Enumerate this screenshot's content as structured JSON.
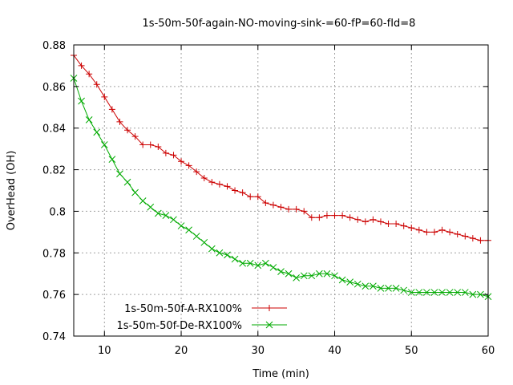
{
  "chart_data": {
    "type": "line",
    "title": "1s-50m-50f-again-NO-moving-sink-=60-fP=60-fId=8",
    "xlabel": "Time (min)",
    "ylabel": "OverHead (OH)",
    "xlim": [
      6,
      60
    ],
    "ylim": [
      0.74,
      0.88
    ],
    "xticks": [
      10,
      20,
      30,
      40,
      50,
      60
    ],
    "yticks": [
      0.74,
      0.76,
      0.78,
      0.8,
      0.82,
      0.84,
      0.86,
      0.88
    ],
    "ytick_labels": [
      "0.74",
      "0.76",
      "0.78",
      "0.8",
      "0.82",
      "0.84",
      "0.86",
      "0.88"
    ],
    "grid": true,
    "legend_position": "bottom-left",
    "series": [
      {
        "name": "1s-50m-50f-A-RX100%",
        "color": "#cc0000",
        "marker": "plus",
        "x": [
          6,
          7,
          8,
          9,
          10,
          11,
          12,
          13,
          14,
          15,
          16,
          17,
          18,
          19,
          20,
          21,
          22,
          23,
          24,
          25,
          26,
          27,
          28,
          29,
          30,
          31,
          32,
          33,
          34,
          35,
          36,
          37,
          38,
          39,
          40,
          41,
          42,
          43,
          44,
          45,
          46,
          47,
          48,
          49,
          50,
          51,
          52,
          53,
          54,
          55,
          56,
          57,
          58,
          59,
          60
        ],
        "y": [
          0.875,
          0.87,
          0.866,
          0.861,
          0.855,
          0.849,
          0.843,
          0.839,
          0.836,
          0.832,
          0.832,
          0.831,
          0.828,
          0.827,
          0.824,
          0.822,
          0.819,
          0.816,
          0.814,
          0.813,
          0.812,
          0.81,
          0.809,
          0.807,
          0.807,
          0.804,
          0.803,
          0.802,
          0.801,
          0.801,
          0.8,
          0.797,
          0.797,
          0.798,
          0.798,
          0.798,
          0.797,
          0.796,
          0.795,
          0.796,
          0.795,
          0.794,
          0.794,
          0.793,
          0.792,
          0.791,
          0.79,
          0.79,
          0.791,
          0.79,
          0.789,
          0.788,
          0.787,
          0.786,
          0.786
        ]
      },
      {
        "name": "1s-50m-50f-De-RX100%",
        "color": "#00aa00",
        "marker": "cross",
        "x": [
          6,
          7,
          8,
          9,
          10,
          11,
          12,
          13,
          14,
          15,
          16,
          17,
          18,
          19,
          20,
          21,
          22,
          23,
          24,
          25,
          26,
          27,
          28,
          29,
          30,
          31,
          32,
          33,
          34,
          35,
          36,
          37,
          38,
          39,
          40,
          41,
          42,
          43,
          44,
          45,
          46,
          47,
          48,
          49,
          50,
          51,
          52,
          53,
          54,
          55,
          56,
          57,
          58,
          59,
          60
        ],
        "y": [
          0.864,
          0.853,
          0.844,
          0.838,
          0.832,
          0.825,
          0.818,
          0.814,
          0.809,
          0.805,
          0.802,
          0.799,
          0.798,
          0.796,
          0.793,
          0.791,
          0.788,
          0.785,
          0.782,
          0.78,
          0.779,
          0.777,
          0.775,
          0.775,
          0.774,
          0.775,
          0.773,
          0.771,
          0.77,
          0.768,
          0.769,
          0.769,
          0.77,
          0.77,
          0.769,
          0.767,
          0.766,
          0.765,
          0.764,
          0.764,
          0.763,
          0.763,
          0.763,
          0.762,
          0.761,
          0.761,
          0.761,
          0.761,
          0.761,
          0.761,
          0.761,
          0.761,
          0.76,
          0.76,
          0.759
        ]
      }
    ]
  }
}
